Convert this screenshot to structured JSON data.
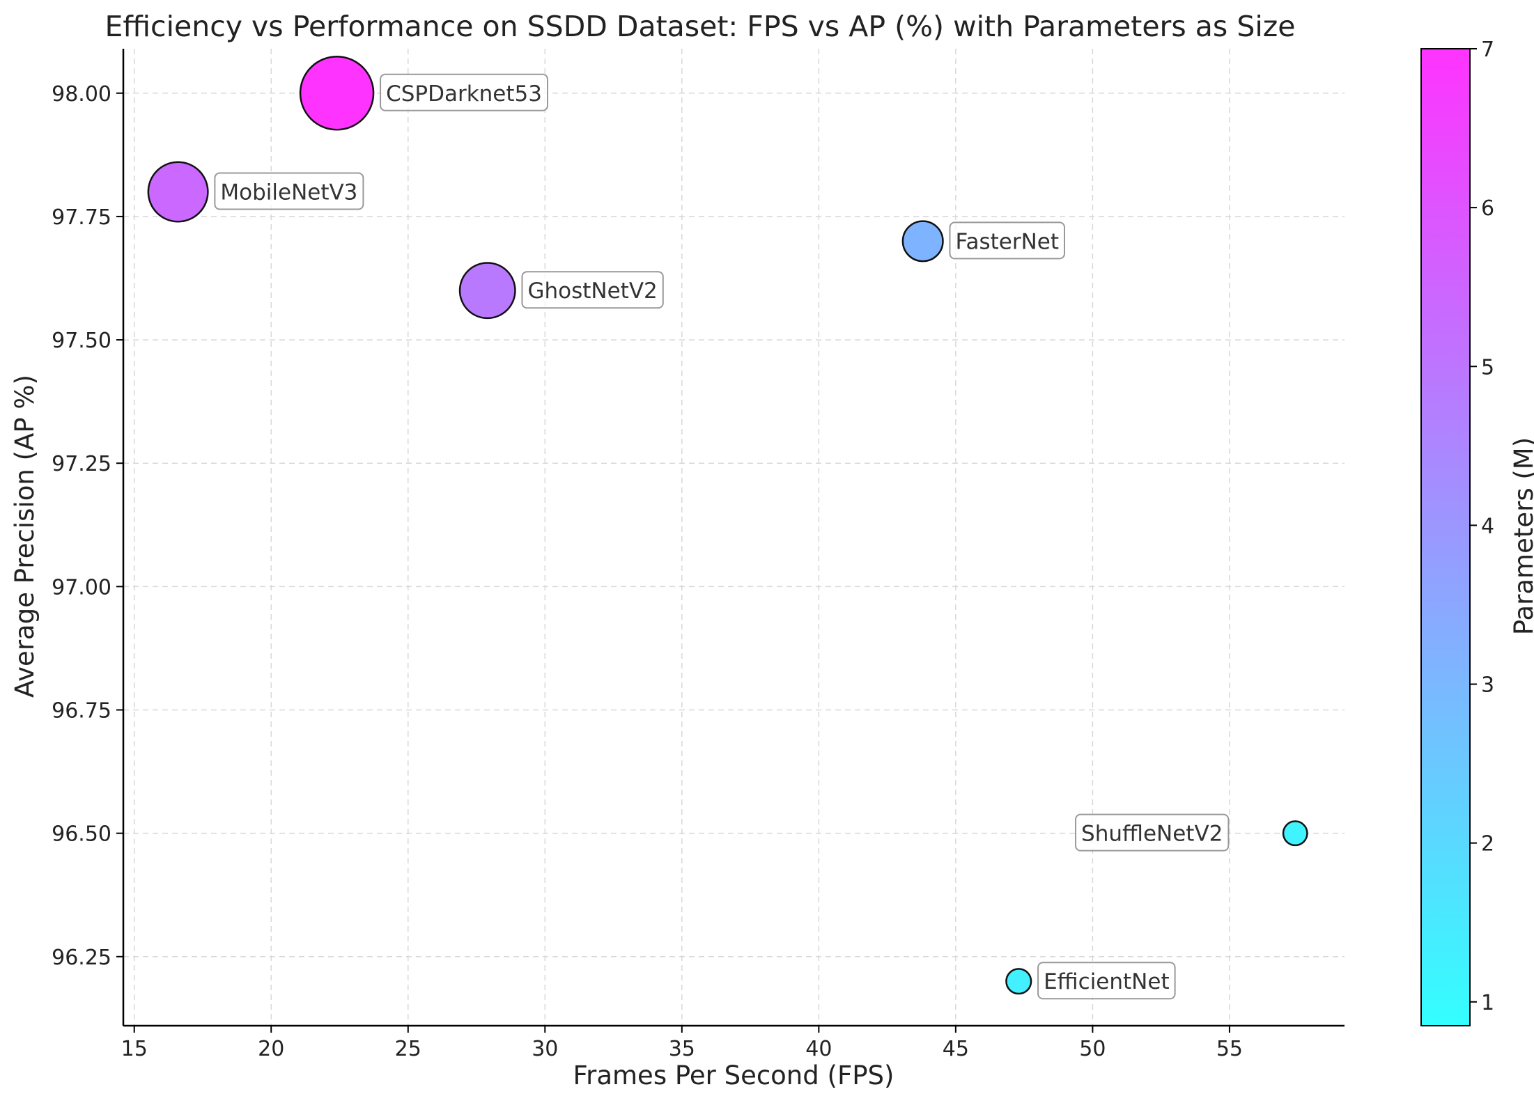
{
  "chart_data": {
    "type": "scatter",
    "title": "Efficiency vs Performance on SSDD Dataset: FPS vs AP (%) with Parameters as Size",
    "xlabel": "Frames Per Second (FPS)",
    "ylabel": "Average Precision (AP %)",
    "xlim": [
      14.6,
      59.2
    ],
    "ylim": [
      96.11,
      98.09
    ],
    "x_ticks": [
      "15",
      "20",
      "25",
      "30",
      "35",
      "40",
      "45",
      "50",
      "55"
    ],
    "y_ticks": [
      "96.25",
      "96.50",
      "96.75",
      "97.00",
      "97.25",
      "97.50",
      "97.75",
      "98.00"
    ],
    "grid": true,
    "colorbar": {
      "label": "Parameters (M)",
      "range": [
        0.85,
        7.0
      ],
      "ticks": [
        "1",
        "2",
        "3",
        "4",
        "5",
        "6",
        "7"
      ],
      "colormap": "cool",
      "color_low": "#33ffff",
      "color_high": "#ff33ff"
    },
    "points": [
      {
        "name": "CSPDarknet53",
        "fps": 22.4,
        "ap": 98.0,
        "params": 7.0,
        "label_side": "right"
      },
      {
        "name": "MobileNetV3",
        "fps": 16.6,
        "ap": 97.8,
        "params": 5.4,
        "label_side": "right"
      },
      {
        "name": "GhostNetV2",
        "fps": 27.9,
        "ap": 97.6,
        "params": 4.9,
        "label_side": "right"
      },
      {
        "name": "FasterNet",
        "fps": 43.8,
        "ap": 97.7,
        "params": 3.1,
        "label_side": "right"
      },
      {
        "name": "ShuffleNetV2",
        "fps": 57.4,
        "ap": 96.5,
        "params": 1.2,
        "label_side": "left"
      },
      {
        "name": "EfficientNet",
        "fps": 47.3,
        "ap": 96.2,
        "params": 1.3,
        "label_side": "right"
      }
    ]
  }
}
